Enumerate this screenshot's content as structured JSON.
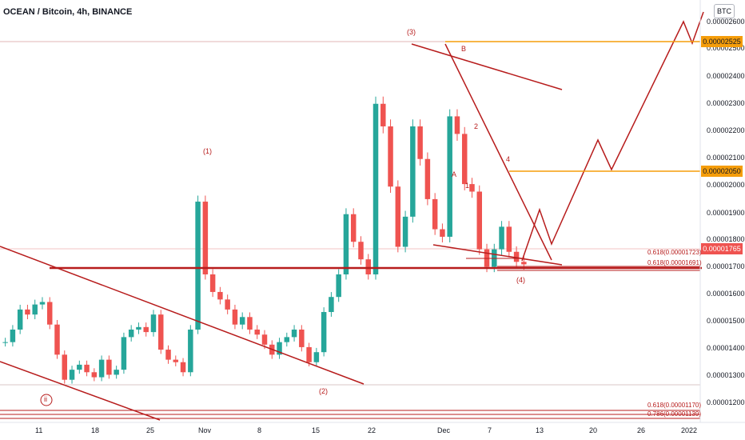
{
  "title": "OCEAN / Bitcoin, 4h, BINANCE",
  "currency": "BTC",
  "colors": {
    "up": "#26a69a",
    "down": "#ef5350",
    "drawing": "#b71c1c",
    "orange": "#f59d0a",
    "last": "#ef5350"
  },
  "chart_data": {
    "type": "candlestick",
    "y_ticks": [
      "0.00002600",
      "0.00002500",
      "0.00002400",
      "0.00002300",
      "0.00002200",
      "0.00002100",
      "0.00002000",
      "0.00001900",
      "0.00001800",
      "0.00001700",
      "0.00001600",
      "0.00001500",
      "0.00001400",
      "0.00001300",
      "0.00001200"
    ],
    "x_ticks": [
      "11",
      "18",
      "25",
      "Nov",
      "8",
      "15",
      "22",
      "Dec",
      "7",
      "13",
      "20",
      "26",
      "2022"
    ],
    "ylim": [
      1.13e-05,
      2.75e-05
    ],
    "price_labels": [
      {
        "text": "0.00002525",
        "value": 2.525e-05,
        "color": "orange"
      },
      {
        "text": "0.00002050",
        "value": 2.05e-05,
        "color": "orange"
      },
      {
        "text": "0.00001765",
        "value": 1.765e-05,
        "color": "last"
      }
    ],
    "wave_labels": [
      "(1)",
      "(2)",
      "(3)",
      "(4)",
      "ii",
      "A",
      "B",
      "1",
      "2",
      "4"
    ],
    "fib_labels": [
      "0.618(0.00001723)",
      "0.618(0.00001691)",
      "0.618(0.00001170)",
      "0.786(0.00001139)"
    ],
    "candle_closes": [
      1.45e-05,
      1.5e-05,
      1.58e-05,
      1.56e-05,
      1.6e-05,
      1.61e-05,
      1.52e-05,
      1.4e-05,
      1.3e-05,
      1.34e-05,
      1.36e-05,
      1.33e-05,
      1.31e-05,
      1.38e-05,
      1.32e-05,
      1.34e-05,
      1.47e-05,
      1.5e-05,
      1.51e-05,
      1.49e-05,
      1.56e-05,
      1.42e-05,
      1.38e-05,
      1.37e-05,
      1.33e-05,
      1.5e-05,
      2.01e-05,
      1.72e-05,
      1.65e-05,
      1.62e-05,
      1.58e-05,
      1.52e-05,
      1.55e-05,
      1.5e-05,
      1.48e-05,
      1.44e-05,
      1.4e-05,
      1.45e-05,
      1.47e-05,
      1.5e-05,
      1.43e-05,
      1.37e-05,
      1.41e-05,
      1.57e-05,
      1.63e-05,
      1.72e-05,
      1.96e-05,
      1.85e-05,
      1.78e-05,
      1.72e-05,
      2.4e-05,
      2.31e-05,
      2.07e-05,
      1.83e-05,
      1.95e-05,
      2.31e-05,
      2.18e-05,
      2.02e-05,
      1.9e-05,
      1.87e-05,
      2.35e-05,
      2.28e-05,
      2.08e-05,
      2.05e-05,
      1.82e-05,
      1.75e-05,
      1.82e-05,
      1.91e-05,
      1.81e-05,
      1.77e-05,
      1.76e-05
    ]
  }
}
